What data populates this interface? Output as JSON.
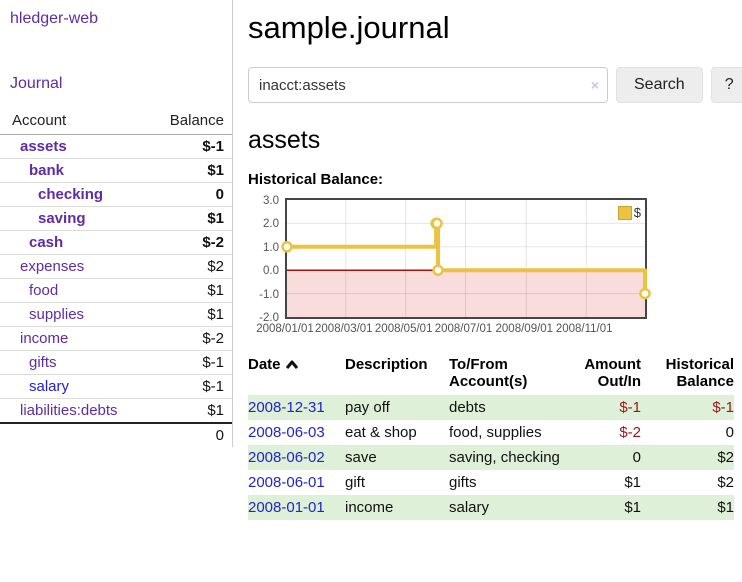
{
  "app": {
    "brand": "hledger-web",
    "nav_journal": "Journal"
  },
  "header": {
    "title": "sample.journal"
  },
  "search": {
    "value": "inacct:assets",
    "clear_icon": "×",
    "button_label": "Search",
    "help_label": "?"
  },
  "account_page": {
    "heading": "assets",
    "chart_label": "Historical Balance:"
  },
  "sidebar": {
    "headers": {
      "account": "Account",
      "balance": "Balance"
    },
    "rows": [
      {
        "account": "assets",
        "level": 0,
        "bold": true,
        "balance": "$-1"
      },
      {
        "account": "bank",
        "level": 1,
        "bold": true,
        "balance": "$1"
      },
      {
        "account": "checking",
        "level": 2,
        "bold": true,
        "balance": "0"
      },
      {
        "account": "saving",
        "level": 2,
        "bold": true,
        "balance": "$1"
      },
      {
        "account": "cash",
        "level": 1,
        "bold": true,
        "balance": "$-2"
      },
      {
        "account": "expenses",
        "level": 0,
        "bold": false,
        "balance": "$2"
      },
      {
        "account": "food",
        "level": 1,
        "bold": false,
        "balance": "$1"
      },
      {
        "account": "supplies",
        "level": 1,
        "bold": false,
        "balance": "$1"
      },
      {
        "account": "income",
        "level": 0,
        "bold": false,
        "balance": "$-2"
      },
      {
        "account": "gifts",
        "level": 1,
        "bold": false,
        "balance": "$-1"
      },
      {
        "account": "salary",
        "level": 1,
        "bold": false,
        "balance": "$-1",
        "link_style": "blue"
      },
      {
        "account": "liabilities:debts",
        "level": 0,
        "bold": false,
        "balance": "$1"
      }
    ],
    "total": "0"
  },
  "chart_data": {
    "type": "line",
    "title": "Historical Balance",
    "legend_label": "$",
    "legend_position": "top-right",
    "grid": true,
    "x_range": [
      "2008/01/01",
      "2008/12/31"
    ],
    "ylim": [
      -2,
      3
    ],
    "yticks": [
      {
        "v": 3,
        "label": "3.0"
      },
      {
        "v": 2,
        "label": "2.0"
      },
      {
        "v": 1,
        "label": "1.0"
      },
      {
        "v": 0,
        "label": "0.0"
      },
      {
        "v": -1,
        "label": "-1.0"
      },
      {
        "v": -2,
        "label": "-2.0"
      }
    ],
    "xticks": [
      "2008/01/01",
      "2008/03/01",
      "2008/05/01",
      "2008/07/01",
      "2008/09/01",
      "2008/11/01"
    ],
    "series": [
      {
        "name": "$",
        "step": true,
        "points": [
          [
            "2008-01-01",
            1
          ],
          [
            "2008-06-01",
            2
          ],
          [
            "2008-06-02",
            2
          ],
          [
            "2008-06-03",
            0
          ],
          [
            "2008-12-31",
            -1
          ]
        ]
      }
    ],
    "colors": {
      "series": "#edc240",
      "marker_fill": "#ffffff",
      "zero_line": "#aa1111",
      "negative_region": "#f9dcdc",
      "grid": "rgba(0,0,0,0.10)",
      "border": "#454545"
    }
  },
  "register": {
    "headers": {
      "date": "Date",
      "description": "Description",
      "accounts": "To/From Account(s)",
      "amount": "Amount Out/In",
      "balance": "Historical Balance"
    },
    "rows": [
      {
        "date": "2008-12-31",
        "description": "pay off",
        "accounts": "debts",
        "amount": "$-1",
        "balance": "$-1"
      },
      {
        "date": "2008-06-03",
        "description": "eat & shop",
        "accounts": "food, supplies",
        "amount": "$-2",
        "balance": "0"
      },
      {
        "date": "2008-06-02",
        "description": "save",
        "accounts": "saving, checking",
        "amount": "0",
        "balance": "$2"
      },
      {
        "date": "2008-06-01",
        "description": "gift",
        "accounts": "gifts",
        "amount": "$1",
        "balance": "$2"
      },
      {
        "date": "2008-01-01",
        "description": "income",
        "accounts": "salary",
        "amount": "$1",
        "balance": "$1"
      }
    ]
  }
}
